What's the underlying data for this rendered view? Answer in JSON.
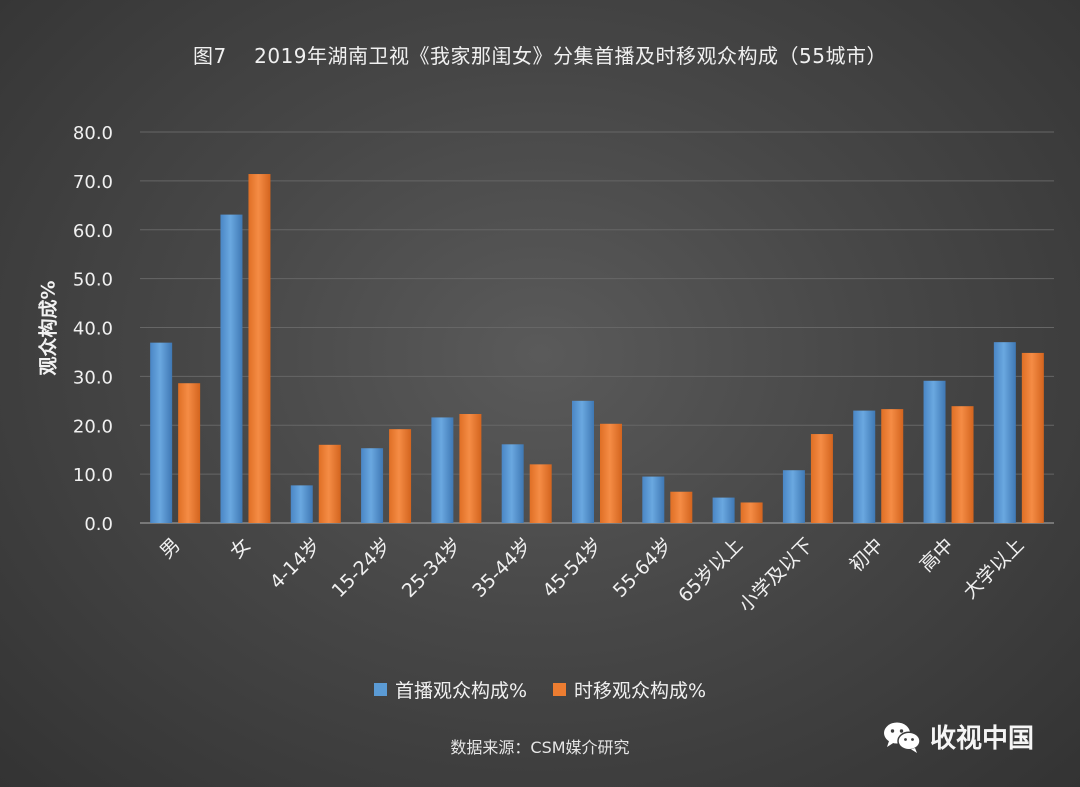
{
  "title": "图7    2019年湖南卫视《我家那闺女》分集首播及时移观众构成（55城市）",
  "source_note": "数据来源：CSM媒介研究",
  "brand": {
    "name": "收视中国",
    "icon": "wechat-icon"
  },
  "colors": {
    "series1": "#5b9bd5",
    "series2": "#ed7d31",
    "grid": "#6a6a6a",
    "text": "#f0f0f0"
  },
  "chart_data": {
    "type": "bar",
    "title": "图7    2019年湖南卫视《我家那闺女》分集首播及时移观众构成（55城市）",
    "xlabel": "",
    "ylabel": "观众构成%",
    "ylim": [
      0,
      80
    ],
    "yticks": [
      "0.0",
      "10.0",
      "20.0",
      "30.0",
      "40.0",
      "50.0",
      "60.0",
      "70.0",
      "80.0"
    ],
    "grid": true,
    "legend_position": "bottom",
    "categories": [
      "男",
      "女",
      "4-14岁",
      "15-24岁",
      "25-34岁",
      "35-44岁",
      "45-54岁",
      "55-64岁",
      "65岁以上",
      "小学及以下",
      "初中",
      "高中",
      "大学以上"
    ],
    "series": [
      {
        "name": "首播观众构成%",
        "values": [
          36.9,
          63.1,
          7.7,
          15.3,
          21.6,
          16.1,
          25.0,
          9.5,
          5.2,
          10.8,
          23.0,
          29.1,
          37.0
        ]
      },
      {
        "name": "时移观众构成%",
        "values": [
          28.6,
          71.4,
          16.0,
          19.2,
          22.3,
          12.0,
          20.3,
          6.4,
          4.2,
          18.2,
          23.3,
          23.9,
          34.8
        ]
      }
    ]
  }
}
